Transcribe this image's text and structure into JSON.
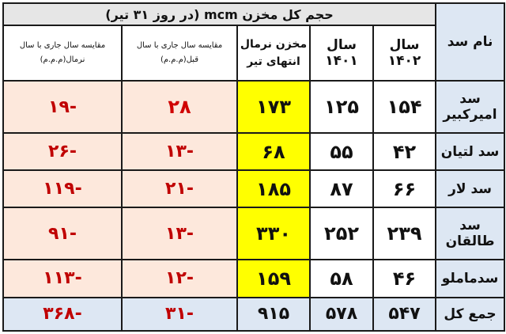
{
  "title": "حجم کل مخزن mcm (در روز ۳۱ تیر)",
  "headers": {
    "dam_name": "نام سد",
    "year_1402": "سال ۱۴۰۲",
    "year_1401": "سال ۱۴۰۱",
    "normal_line1": "مخزن نرمال",
    "normal_line2": "انتهای تیر",
    "cmp_prev_line1": "مقایسه سال جاری با سال",
    "cmp_prev_line2": "قبل(م.م.م)",
    "cmp_normal_line1": "مقایسه سال جاری با سال",
    "cmp_normal_line2": "نرمال(م.م.م)"
  },
  "rows": [
    {
      "name": "سد امیرکبیر",
      "y1402": "۱۵۴",
      "y1401": "۱۲۵",
      "normal": "۱۷۳",
      "cmp_prev": "۲۸",
      "cmp_normal": "-۱۹"
    },
    {
      "name": "سد لتیان",
      "y1402": "۴۲",
      "y1401": "۵۵",
      "normal": "۶۸",
      "cmp_prev": "-۱۳",
      "cmp_normal": "-۲۶"
    },
    {
      "name": "سد لار",
      "y1402": "۶۶",
      "y1401": "۸۷",
      "normal": "۱۸۵",
      "cmp_prev": "-۲۱",
      "cmp_normal": "-۱۱۹"
    },
    {
      "name": "سد طالقان",
      "y1402": "۲۳۹",
      "y1401": "۲۵۲",
      "normal": "۳۳۰",
      "cmp_prev": "-۱۳",
      "cmp_normal": "-۹۱"
    },
    {
      "name": "سدماملو",
      "y1402": "۴۶",
      "y1401": "۵۸",
      "normal": "۱۵۹",
      "cmp_prev": "-۱۲",
      "cmp_normal": "-۱۱۳"
    }
  ],
  "total": {
    "name": "جمع کل",
    "y1402": "۵۴۷",
    "y1401": "۵۷۸",
    "normal": "۹۱۵",
    "cmp_prev": "-۳۱",
    "cmp_normal": "-۳۶۸"
  },
  "colors": {
    "name_column_bg": "#dde7f3",
    "normal_column_bg": "#ffff00",
    "comparison_bg": "#fde8dc",
    "negative_text": "#c00000"
  }
}
